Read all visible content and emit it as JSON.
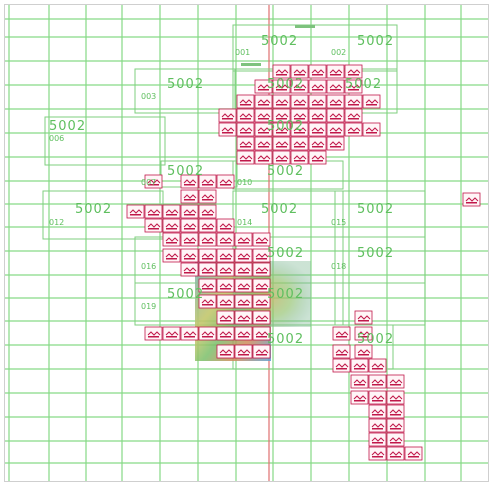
{
  "map": {
    "grid_color": "#86d986",
    "outline_color": "#7fcf7f",
    "sheet_color": "#c0184a",
    "axis_color": "#e07070",
    "label_color": "#5fbf5f",
    "code_label": "5002",
    "region_labels": [
      "001",
      "002",
      "003",
      "006",
      "007",
      "010",
      "012",
      "014",
      "015",
      "016",
      "018",
      "019"
    ],
    "selected_sheet_overlay": "satellite-imagery"
  }
}
